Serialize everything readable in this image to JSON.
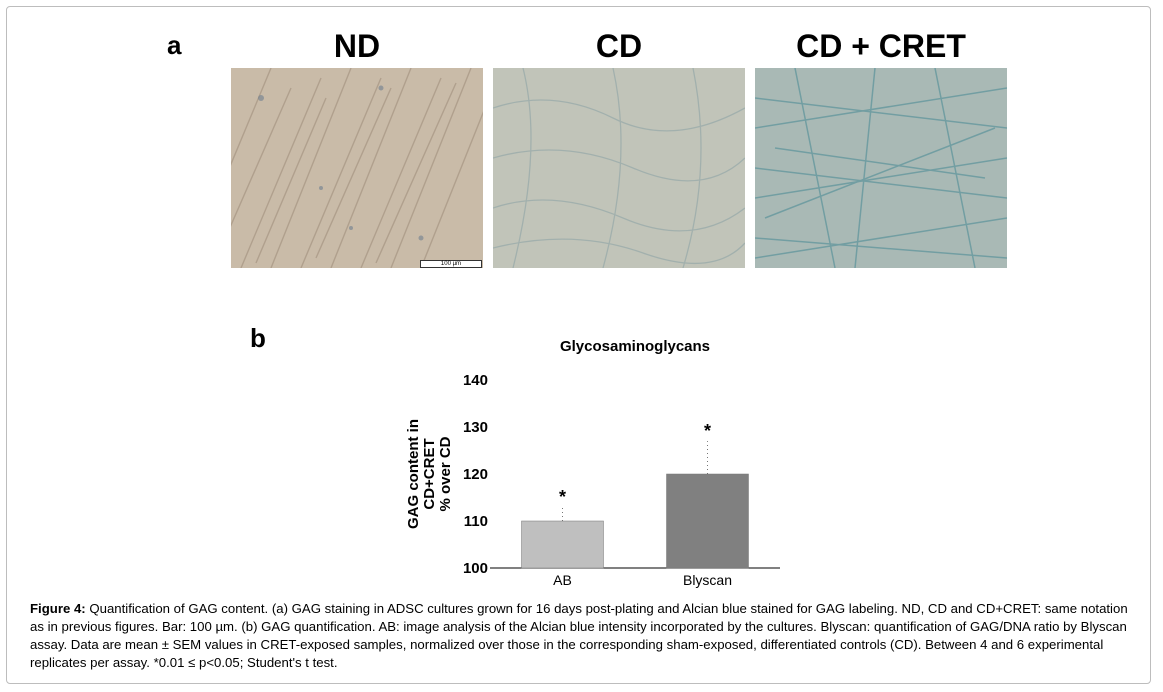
{
  "panel_a": {
    "letter": "a",
    "images": [
      {
        "title": "ND",
        "tint": "#c9bba8"
      },
      {
        "title": "CD",
        "tint": "#c1c4b9"
      },
      {
        "title": "CD + CRET",
        "tint": "#9fb6b6"
      }
    ],
    "scalebar_label": "100 µm"
  },
  "panel_b": {
    "letter": "b"
  },
  "chart_data": {
    "type": "bar",
    "title": "Glycosaminoglycans",
    "ylabel_lines": [
      "GAG content in",
      "CD+CRET",
      "% over CD"
    ],
    "xlabel": "",
    "categories": [
      "AB",
      "Blyscan"
    ],
    "values": [
      110,
      120
    ],
    "errors": [
      3,
      7
    ],
    "significance": [
      "*",
      "*"
    ],
    "bar_colors": [
      "#bfbfbf",
      "#808080"
    ],
    "ylim": [
      100,
      140
    ],
    "yticks": [
      100,
      110,
      120,
      130,
      140
    ],
    "grid": false
  },
  "caption": {
    "label": "Figure 4:",
    "text": "Quantification of GAG content. (a) GAG staining in ADSC cultures grown for 16 days post-plating and Alcian blue stained for GAG labeling. ND, CD and CD+CRET: same notation as in previous figures. Bar: 100 µm. (b) GAG quantification. AB: image analysis of the Alcian blue intensity incorporated by the cultures. Blyscan: quantification of GAG/DNA ratio by Blyscan assay. Data are mean ± SEM values in CRET-exposed samples, normalized over those in the corresponding sham-exposed, differentiated controls (CD). Between 4 and 6 experimental replicates per assay. *0.01 ≤ p<0.05; Student's t test."
  }
}
